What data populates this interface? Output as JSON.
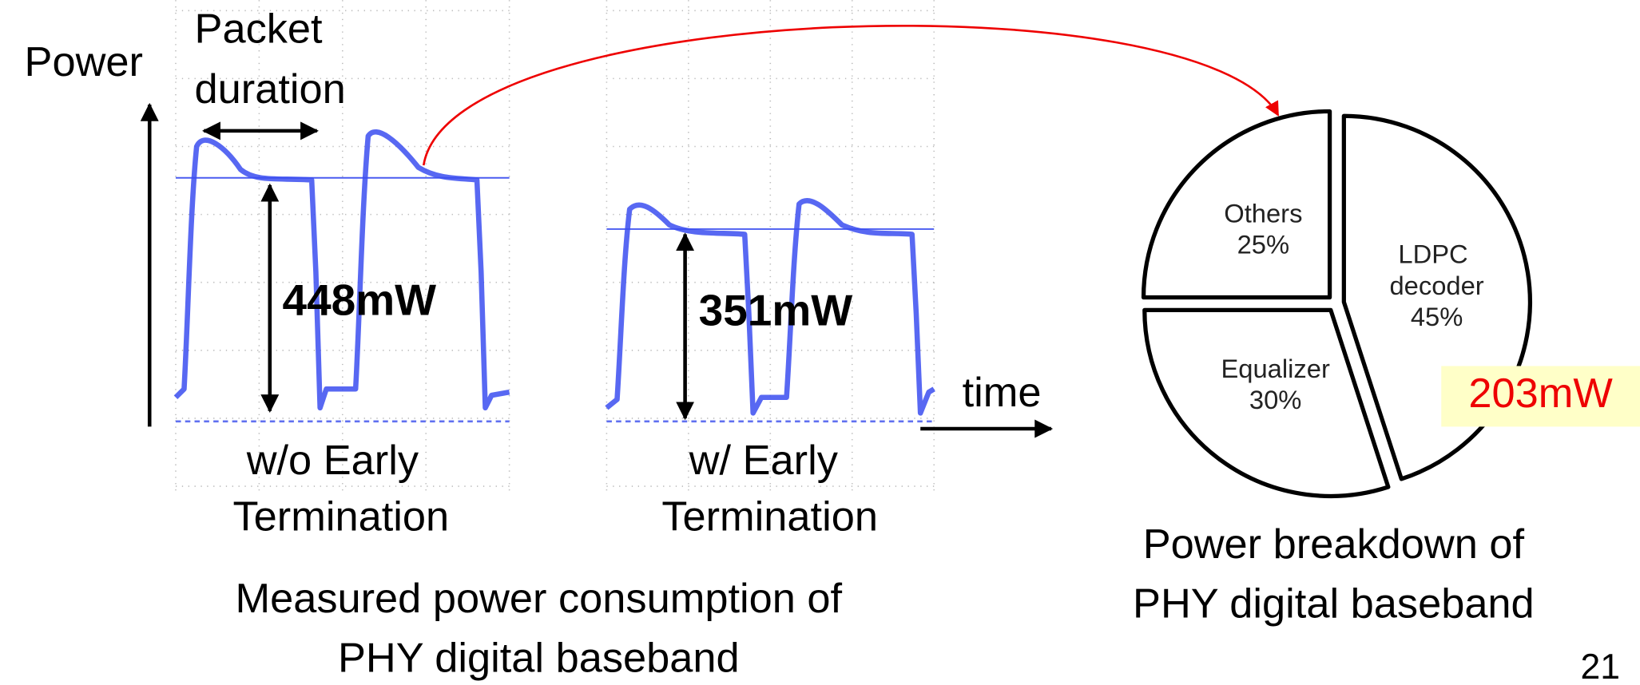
{
  "slide": {
    "axis_label": "Power",
    "packet_label": [
      "Packet",
      "duration"
    ],
    "time_label": "time",
    "power_without": "448mW",
    "power_with": "351mW",
    "caption_without": [
      "w/o Early",
      "Termination"
    ],
    "caption_with": [
      "w/ Early",
      "Termination"
    ],
    "caption_measured": [
      "Measured power consumption of",
      "PHY digital baseband"
    ],
    "page_number": "21"
  },
  "chart_data": {
    "type": "pie",
    "title": [
      "Power breakdown of",
      "PHY digital baseband"
    ],
    "categories": [
      "LDPC decoder",
      "Equalizer",
      "Others"
    ],
    "values": [
      45,
      30,
      25
    ],
    "value_labels": [
      "45%",
      "30%",
      "25%"
    ],
    "color": "#ffffff",
    "annotation": "203mW"
  }
}
